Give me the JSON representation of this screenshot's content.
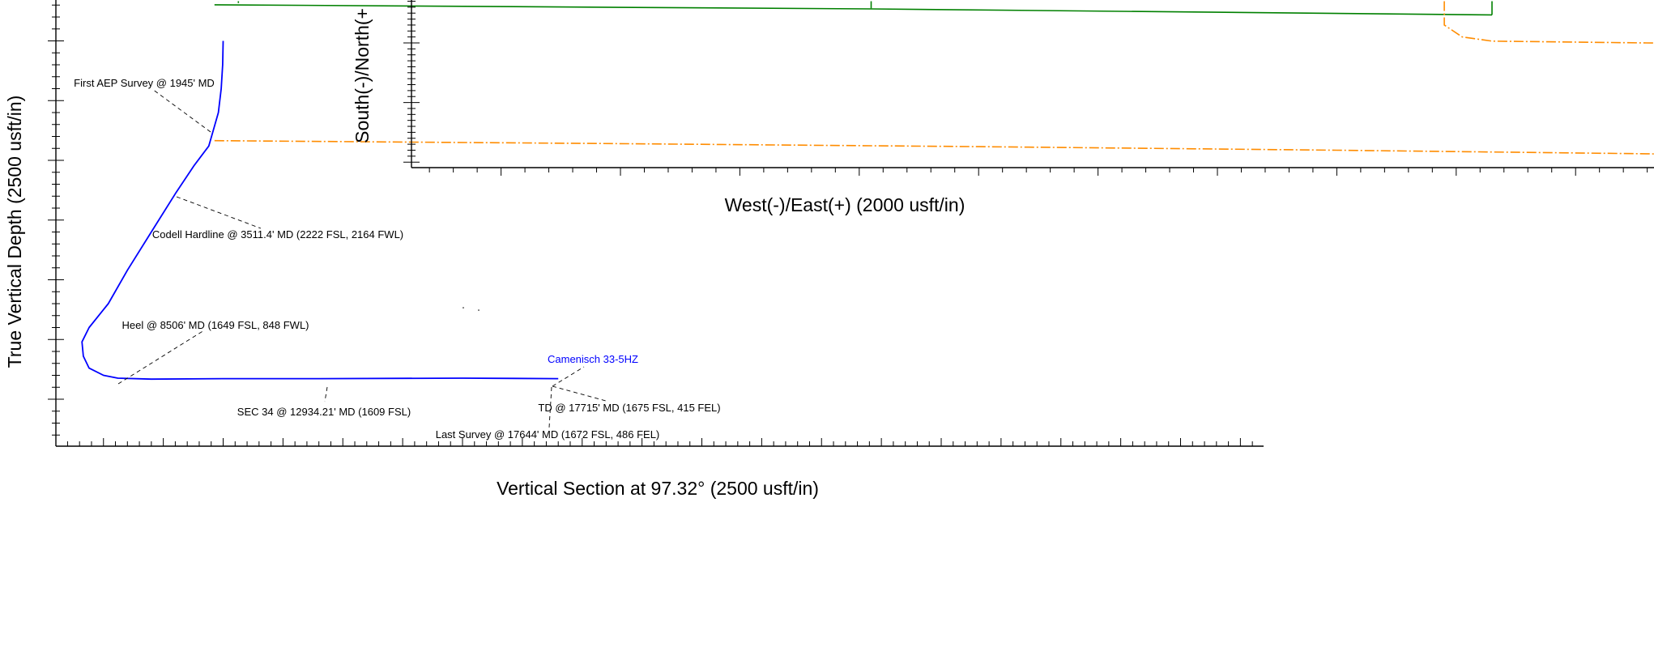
{
  "chart_data": [
    {
      "type": "line",
      "xlabel": "Vertical Section at 97.32° (2500 usft/in)",
      "ylabel": "True Vertical Depth (2500 usft/in)",
      "xlim": [
        -3500,
        21750
      ],
      "ylim": [
        8750,
        -750
      ],
      "x_ticks": [
        "-2500",
        "-1250",
        "0",
        "1250",
        "2500",
        "3750",
        "5000",
        "6250",
        "7500",
        "8750",
        "10000",
        "11250",
        "12500",
        "13750",
        "15000",
        "16250",
        "17500",
        "18750",
        "20000",
        "21250"
      ],
      "y_ticks": [
        "0",
        "1250",
        "2500",
        "3750",
        "5000",
        "6250",
        "7500"
      ],
      "series": [
        {
          "color": "#0000ff",
          "x": [
            0,
            -10,
            -40,
            -100,
            -300,
            -600,
            -1000,
            -1500,
            -2000,
            -2400,
            -2800,
            -2950,
            -2920,
            -2800,
            -2500,
            -2200,
            -1500,
            0,
            2000,
            5000,
            7000
          ],
          "y": [
            0,
            500,
            1000,
            1500,
            2200,
            2600,
            3200,
            4000,
            4800,
            5500,
            6000,
            6300,
            6600,
            6850,
            7000,
            7060,
            7080,
            7070,
            7070,
            7060,
            7070
          ]
        }
      ],
      "annotations": [
        {
          "text": "First AEP Survey @ 1945' MD",
          "x": -200,
          "y": 1900
        },
        {
          "text": "Codell Hardline @ 3511.4' MD (2222 FSL, 2164 FWL)",
          "x": -1000,
          "y": 3230
        },
        {
          "text": "Heel @ 8506' MD (1649 FSL, 848 FWL)",
          "x": -2200,
          "y": 7050
        },
        {
          "text": "SEC 34 @ 12934.21' MD (1609 FSL)",
          "x": 2200,
          "y": 7070
        },
        {
          "text": "Camenisch 33-5HZ",
          "x": 6900,
          "y": 7070
        },
        {
          "text": "TD @ 17715' MD (1675 FSL, 415 FEL)",
          "x": 6900,
          "y": 7070
        },
        {
          "text": "Last Survey @ 17644' MD (1672 FSL, 486 FEL)",
          "x": 6800,
          "y": 7070
        }
      ]
    },
    {
      "type": "line",
      "xlabel": "West(-)/East(+) (2000 usft/in)",
      "ylabel": "South(-)/North(+",
      "xlim": [
        -3400,
        11000
      ],
      "ylim": [
        -5000,
        -2300
      ],
      "x_ticks": [
        "-3000",
        "-2000",
        "-1000",
        "0",
        "1000",
        "2000",
        "3000",
        "4000",
        "5000",
        "6000",
        "7000",
        "8000",
        "9000",
        "10000",
        "11"
      ],
      "y_ticks": [
        "-3000",
        "-4000",
        "-5000"
      ],
      "series": [
        {
          "color": "#008000",
          "x": [
            -3400,
            2100,
            7300
          ],
          "y": [
            -2360,
            -2430,
            -2530
          ]
        },
        {
          "color": "#008000",
          "x": [
            -3200,
            -3200
          ],
          "y": [
            -2300,
            -2330
          ]
        },
        {
          "color": "#008000",
          "x": [
            2100,
            2100
          ],
          "y": [
            -2300,
            -2420
          ]
        },
        {
          "color": "#008000",
          "x": [
            7300,
            7300
          ],
          "y": [
            -2300,
            -2530
          ]
        },
        {
          "color": "#ff8c00",
          "x": [
            6900,
            6900,
            7050,
            7300,
            9000,
            11000
          ],
          "y": [
            -2300,
            -2700,
            -2900,
            -2970,
            -3010,
            -3050
          ]
        },
        {
          "color": "#ff8c00",
          "x": [
            -3400,
            0,
            3000,
            6000,
            9000,
            11000
          ],
          "y": [
            -4640,
            -4690,
            -4740,
            -4800,
            -4870,
            -4920
          ]
        }
      ]
    }
  ]
}
